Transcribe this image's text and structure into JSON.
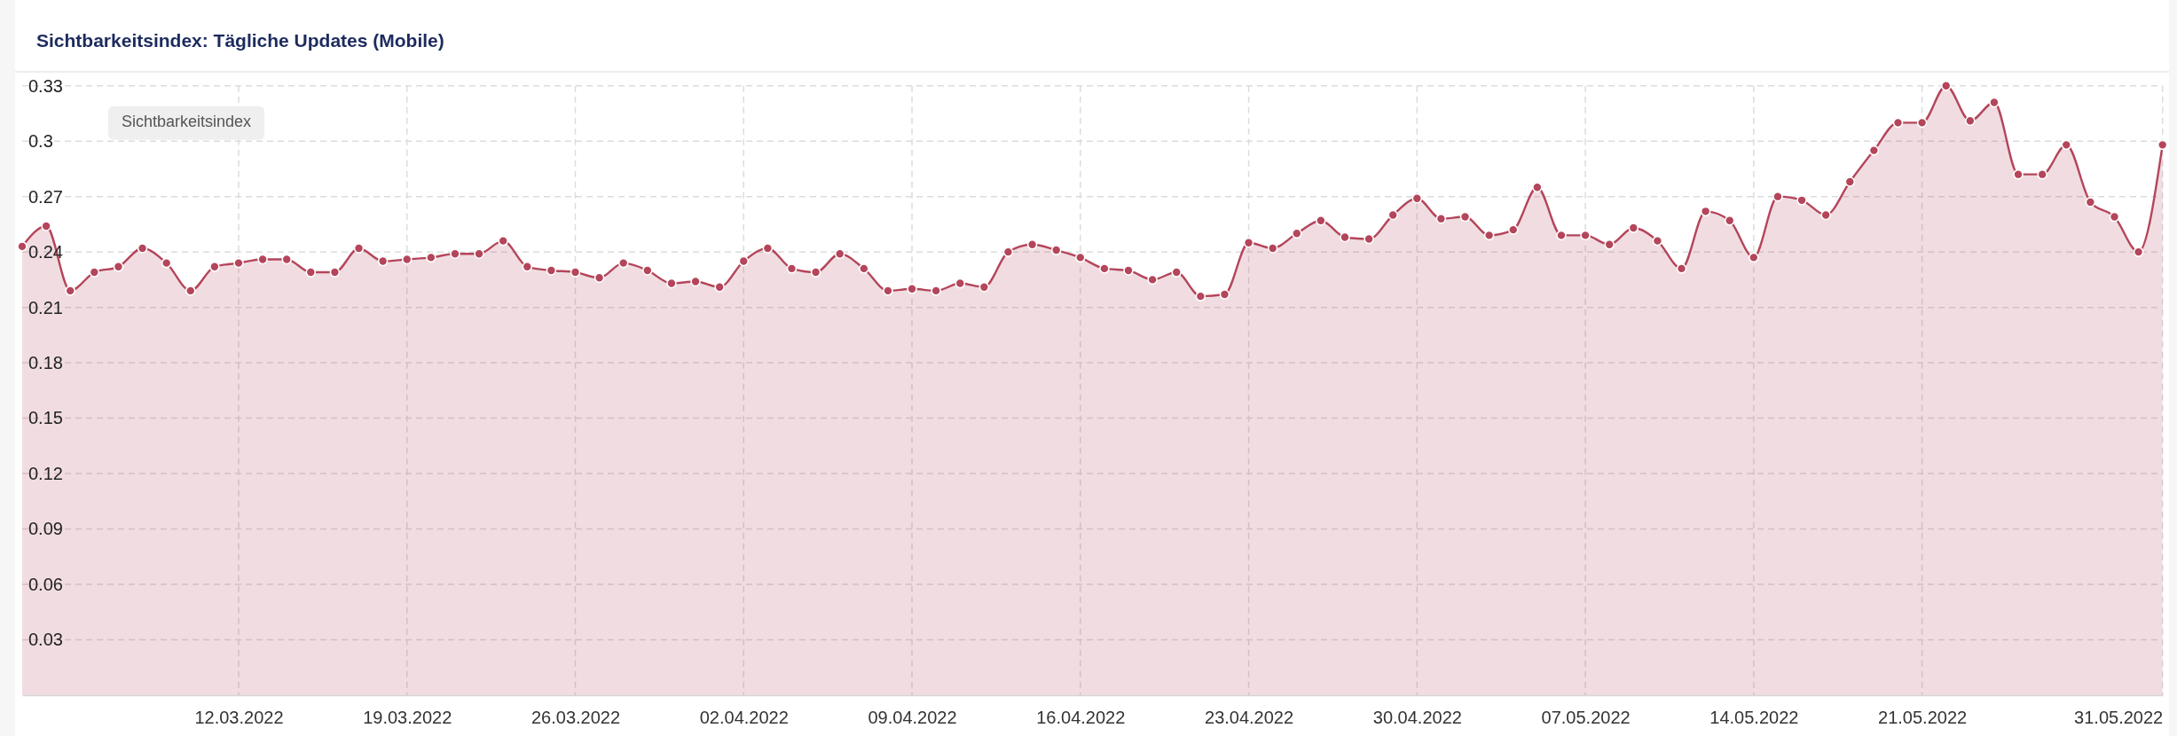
{
  "chart_data": {
    "type": "area",
    "title": "Sichtbarkeitsindex: Tägliche Updates (Mobile)",
    "annotations": [
      "Sichtbarkeitsindex"
    ],
    "grid": true,
    "marker": "circle",
    "color": "#b4455a",
    "x": [
      "2022-03-03",
      "2022-03-04",
      "2022-03-05",
      "2022-03-06",
      "2022-03-07",
      "2022-03-08",
      "2022-03-09",
      "2022-03-10",
      "2022-03-11",
      "2022-03-12",
      "2022-03-13",
      "2022-03-14",
      "2022-03-15",
      "2022-03-16",
      "2022-03-17",
      "2022-03-18",
      "2022-03-19",
      "2022-03-20",
      "2022-03-21",
      "2022-03-22",
      "2022-03-23",
      "2022-03-24",
      "2022-03-25",
      "2022-03-26",
      "2022-03-27",
      "2022-03-28",
      "2022-03-29",
      "2022-03-30",
      "2022-03-31",
      "2022-04-01",
      "2022-04-02",
      "2022-04-03",
      "2022-04-04",
      "2022-04-05",
      "2022-04-06",
      "2022-04-07",
      "2022-04-08",
      "2022-04-09",
      "2022-04-10",
      "2022-04-11",
      "2022-04-12",
      "2022-04-13",
      "2022-04-14",
      "2022-04-15",
      "2022-04-16",
      "2022-04-17",
      "2022-04-18",
      "2022-04-19",
      "2022-04-20",
      "2022-04-21",
      "2022-04-22",
      "2022-04-23",
      "2022-04-24",
      "2022-04-25",
      "2022-04-26",
      "2022-04-27",
      "2022-04-28",
      "2022-04-29",
      "2022-04-30",
      "2022-05-01",
      "2022-05-02",
      "2022-05-03",
      "2022-05-04",
      "2022-05-05",
      "2022-05-06",
      "2022-05-07",
      "2022-05-08",
      "2022-05-09",
      "2022-05-10",
      "2022-05-11",
      "2022-05-12",
      "2022-05-13",
      "2022-05-14",
      "2022-05-15",
      "2022-05-16",
      "2022-05-17",
      "2022-05-18",
      "2022-05-19",
      "2022-05-20",
      "2022-05-21",
      "2022-05-22",
      "2022-05-23",
      "2022-05-24",
      "2022-05-25",
      "2022-05-26",
      "2022-05-27",
      "2022-05-28",
      "2022-05-29",
      "2022-05-30",
      "2022-05-31"
    ],
    "values": [
      0.243,
      0.254,
      0.219,
      0.229,
      0.232,
      0.242,
      0.234,
      0.219,
      0.232,
      0.234,
      0.236,
      0.236,
      0.229,
      0.229,
      0.242,
      0.235,
      0.236,
      0.237,
      0.239,
      0.239,
      0.246,
      0.232,
      0.23,
      0.229,
      0.226,
      0.234,
      0.23,
      0.223,
      0.224,
      0.221,
      0.235,
      0.242,
      0.231,
      0.229,
      0.239,
      0.231,
      0.219,
      0.22,
      0.219,
      0.223,
      0.221,
      0.24,
      0.244,
      0.241,
      0.237,
      0.231,
      0.23,
      0.225,
      0.229,
      0.216,
      0.217,
      0.245,
      0.242,
      0.25,
      0.257,
      0.248,
      0.247,
      0.26,
      0.269,
      0.258,
      0.259,
      0.249,
      0.252,
      0.275,
      0.249,
      0.249,
      0.244,
      0.253,
      0.246,
      0.231,
      0.262,
      0.257,
      0.237,
      0.27,
      0.268,
      0.26,
      0.278,
      0.295,
      0.31,
      0.31,
      0.33,
      0.311,
      0.321,
      0.282,
      0.282,
      0.298,
      0.267,
      0.259,
      0.24,
      0.298
    ],
    "xlim": [
      "2022-03-03",
      "2022-05-31"
    ],
    "xticks": [
      {
        "value": "2022-03-12",
        "label": "12.03.2022"
      },
      {
        "value": "2022-03-19",
        "label": "19.03.2022"
      },
      {
        "value": "2022-03-26",
        "label": "26.03.2022"
      },
      {
        "value": "2022-04-02",
        "label": "02.04.2022"
      },
      {
        "value": "2022-04-09",
        "label": "09.04.2022"
      },
      {
        "value": "2022-04-16",
        "label": "16.04.2022"
      },
      {
        "value": "2022-04-23",
        "label": "23.04.2022"
      },
      {
        "value": "2022-04-30",
        "label": "30.04.2022"
      },
      {
        "value": "2022-05-07",
        "label": "07.05.2022"
      },
      {
        "value": "2022-05-14",
        "label": "14.05.2022"
      },
      {
        "value": "2022-05-21",
        "label": "21.05.2022"
      },
      {
        "value": "2022-05-31",
        "label": "31.05.2022"
      }
    ],
    "ylim": [
      0,
      0.33
    ],
    "yticks": [
      0.03,
      0.06,
      0.09,
      0.12,
      0.15,
      0.18,
      0.21,
      0.24,
      0.27,
      0.3,
      0.33
    ]
  }
}
